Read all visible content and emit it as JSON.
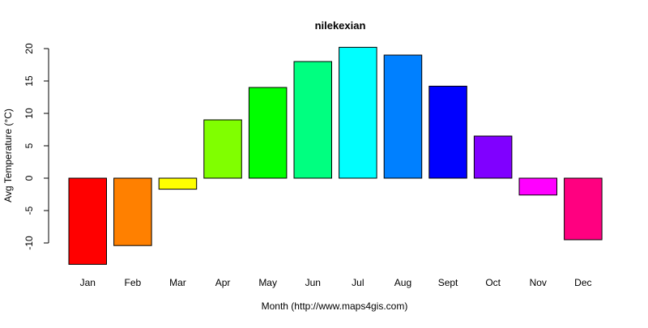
{
  "chart_data": {
    "type": "bar",
    "title": "nilekexian",
    "xlabel": "Month (http://www.maps4gis.com)",
    "ylabel": "Avg Temperature (°C)",
    "categories": [
      "Jan",
      "Feb",
      "Mar",
      "Apr",
      "May",
      "Jun",
      "Jul",
      "Aug",
      "Sept",
      "Oct",
      "Nov",
      "Dec"
    ],
    "values": [
      -13.3,
      -10.4,
      -1.7,
      9.0,
      14.0,
      18.0,
      20.2,
      19.0,
      14.2,
      6.5,
      -2.6,
      -9.5
    ],
    "colors": [
      "#FF0000",
      "#FF8000",
      "#FFFF00",
      "#80FF00",
      "#00FF00",
      "#00FF80",
      "#00FFFF",
      "#0080FF",
      "#0000FF",
      "#8000FF",
      "#FF00FF",
      "#FF0080"
    ],
    "yticks": [
      -10,
      -5,
      0,
      5,
      10,
      15,
      20
    ],
    "ytick_labels": [
      "-10",
      "-5",
      "0",
      "5",
      "10",
      "15",
      "20"
    ],
    "ylim": [
      -13.3,
      20.2
    ],
    "grid": false,
    "legend": false
  }
}
